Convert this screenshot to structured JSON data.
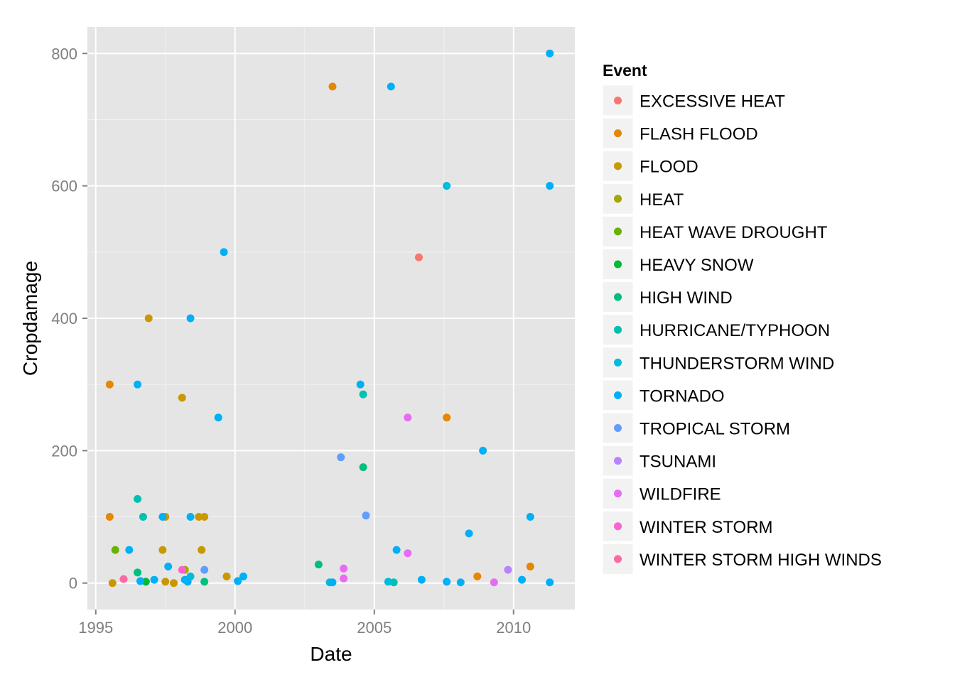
{
  "chart_data": {
    "type": "scatter",
    "title": "",
    "xlabel": "Date",
    "ylabel": "Cropdamage",
    "xlim": [
      1994.7,
      2012.2
    ],
    "ylim": [
      -40,
      840
    ],
    "x_ticks": [
      1995,
      2000,
      2005,
      2010
    ],
    "y_ticks": [
      0,
      200,
      400,
      600,
      800
    ],
    "x_tick_labels": [
      "1995",
      "2000",
      "2005",
      "2010"
    ],
    "y_tick_labels": [
      "0",
      "200",
      "400",
      "600",
      "800"
    ],
    "grid": true,
    "legend_position": "right",
    "legend_title": "Event",
    "series": [
      {
        "name": "EXCESSIVE HEAT",
        "color": "#F8766D",
        "points": [
          [
            2006.6,
            492
          ]
        ]
      },
      {
        "name": "FLASH FLOOD",
        "color": "#E58700",
        "points": [
          [
            1995.5,
            300
          ],
          [
            1995.5,
            100
          ],
          [
            2003.5,
            750
          ],
          [
            2007.6,
            250
          ],
          [
            2008.7,
            10
          ],
          [
            2010.6,
            25
          ]
        ]
      },
      {
        "name": "FLOOD",
        "color": "#C99800",
        "points": [
          [
            1996.9,
            400
          ],
          [
            1998.1,
            280
          ],
          [
            1995.6,
            0
          ],
          [
            1997.4,
            50
          ],
          [
            1997.5,
            100
          ],
          [
            1997.5,
            2
          ],
          [
            1997.8,
            0
          ],
          [
            1998.7,
            100
          ],
          [
            1998.8,
            50
          ],
          [
            1998.9,
            100
          ],
          [
            1999.7,
            10
          ]
        ]
      },
      {
        "name": "HEAT",
        "color": "#A3A500",
        "points": [
          [
            1998.2,
            20
          ]
        ]
      },
      {
        "name": "HEAT WAVE DROUGHT",
        "color": "#6BB100",
        "points": [
          [
            1995.7,
            50
          ]
        ]
      },
      {
        "name": "HEAVY SNOW",
        "color": "#00BA38",
        "points": [
          [
            1996.8,
            2
          ]
        ]
      },
      {
        "name": "HIGH WIND",
        "color": "#00BF7D",
        "points": [
          [
            1996.5,
            16
          ],
          [
            1998.9,
            2
          ],
          [
            2003.0,
            28
          ],
          [
            2004.6,
            175
          ]
        ]
      },
      {
        "name": "HURRICANE/TYPHOON",
        "color": "#00C0AF",
        "points": [
          [
            1996.5,
            127
          ],
          [
            1996.7,
            100
          ],
          [
            2004.6,
            285
          ],
          [
            2005.7,
            1
          ]
        ]
      },
      {
        "name": "THUNDERSTORM WIND",
        "color": "#00BCD8",
        "points": [
          [
            1998.4,
            10
          ],
          [
            2005.5,
            2
          ],
          [
            2007.6,
            600
          ],
          [
            2003.4,
            1
          ]
        ]
      },
      {
        "name": "TORNADO",
        "color": "#00B0F6",
        "points": [
          [
            1996.5,
            300
          ],
          [
            1996.2,
            50
          ],
          [
            1996.6,
            3
          ],
          [
            1997.1,
            5
          ],
          [
            1997.4,
            100
          ],
          [
            1997.6,
            25
          ],
          [
            1998.2,
            5
          ],
          [
            1998.3,
            2
          ],
          [
            1998.4,
            400
          ],
          [
            1998.4,
            100
          ],
          [
            1999.4,
            250
          ],
          [
            1999.6,
            500
          ],
          [
            2000.1,
            3
          ],
          [
            2000.3,
            10
          ],
          [
            2003.5,
            1
          ],
          [
            2004.5,
            300
          ],
          [
            2005.6,
            750
          ],
          [
            2005.8,
            50
          ],
          [
            2006.7,
            5
          ],
          [
            2007.6,
            2
          ],
          [
            2008.1,
            1
          ],
          [
            2008.4,
            75
          ],
          [
            2008.9,
            200
          ],
          [
            2010.3,
            5
          ],
          [
            2010.6,
            100
          ],
          [
            2011.3,
            800
          ],
          [
            2011.3,
            600
          ],
          [
            2011.3,
            1
          ]
        ]
      },
      {
        "name": "TROPICAL STORM",
        "color": "#619CFF",
        "points": [
          [
            1998.9,
            20
          ],
          [
            2003.8,
            190
          ],
          [
            2004.7,
            102
          ]
        ]
      },
      {
        "name": "TSUNAMI",
        "color": "#B983FF",
        "points": [
          [
            2009.8,
            20
          ]
        ]
      },
      {
        "name": "WILDFIRE",
        "color": "#E76BF3",
        "points": [
          [
            2003.9,
            22
          ],
          [
            2003.9,
            7
          ],
          [
            2006.2,
            250
          ],
          [
            2006.2,
            45
          ],
          [
            2009.3,
            1
          ]
        ]
      },
      {
        "name": "WINTER STORM",
        "color": "#FD61D1",
        "points": [
          [
            1998.1,
            20
          ]
        ]
      },
      {
        "name": "WINTER STORM HIGH WINDS",
        "color": "#FF67A4",
        "points": [
          [
            1996.0,
            6
          ]
        ]
      }
    ]
  }
}
